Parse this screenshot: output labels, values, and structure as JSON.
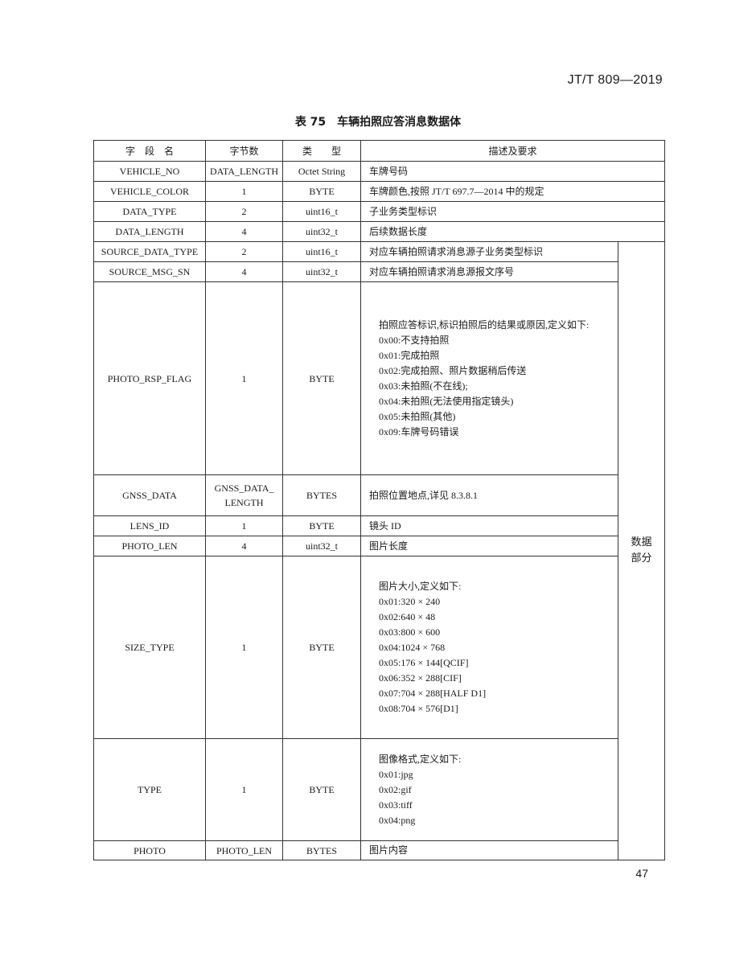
{
  "header": {
    "standard": "JT/T 809—2019"
  },
  "table_title": "表 75　车辆拍照应答消息数据体",
  "columns": [
    "字　段　名",
    "字节数",
    "类　　型",
    "描述及要求"
  ],
  "side_label": "数据\n部分",
  "rows": [
    {
      "name": "VEHICLE_NO",
      "bytes": "DATA_LENGTH",
      "type": "Octet String",
      "desc": [
        "车牌号码"
      ]
    },
    {
      "name": "VEHICLE_COLOR",
      "bytes": "1",
      "type": "BYTE",
      "desc": [
        "车牌颜色,按照 JT/T 697.7—2014 中的规定"
      ]
    },
    {
      "name": "DATA_TYPE",
      "bytes": "2",
      "type": "uint16_t",
      "desc": [
        "子业务类型标识"
      ]
    },
    {
      "name": "DATA_LENGTH",
      "bytes": "4",
      "type": "uint32_t",
      "desc": [
        "后续数据长度"
      ]
    },
    {
      "name": "SOURCE_DATA_TYPE",
      "bytes": "2",
      "type": "uint16_t",
      "desc": [
        "对应车辆拍照请求消息源子业务类型标识"
      ]
    },
    {
      "name": "SOURCE_MSG_SN",
      "bytes": "4",
      "type": "uint32_t",
      "desc": [
        "对应车辆拍照请求消息源报文序号"
      ]
    },
    {
      "name": "PHOTO_RSP_FLAG",
      "bytes": "1",
      "type": "BYTE",
      "desc": [
        "拍照应答标识,标识拍照后的结果或原因,定义如下:",
        "0x00:不支持拍照",
        "0x01:完成拍照",
        "0x02:完成拍照、照片数据稍后传送",
        "0x03:未拍照(不在线);",
        "0x04:未拍照(无法使用指定镜头)",
        "0x05:未拍照(其他)",
        "0x09:车牌号码错误"
      ]
    },
    {
      "name": "GNSS_DATA",
      "bytes": "GNSS_DATA_\nLENGTH",
      "type": "BYTES",
      "desc": [
        "拍照位置地点,详见 8.3.8.1"
      ]
    },
    {
      "name": "LENS_ID",
      "bytes": "1",
      "type": "BYTE",
      "desc": [
        "镜头 ID"
      ]
    },
    {
      "name": "PHOTO_LEN",
      "bytes": "4",
      "type": "uint32_t",
      "desc": [
        "图片长度"
      ]
    },
    {
      "name": "SIZE_TYPE",
      "bytes": "1",
      "type": "BYTE",
      "desc": [
        "图片大小,定义如下:",
        "0x01:320 × 240",
        "0x02:640 × 48",
        "0x03:800 × 600",
        "0x04:1024 × 768",
        "0x05:176 × 144[QCIF]",
        "0x06:352 × 288[CIF]",
        "0x07:704 × 288[HALF D1]",
        "0x08:704 × 576[D1]"
      ]
    },
    {
      "name": "TYPE",
      "bytes": "1",
      "type": "BYTE",
      "desc": [
        "图像格式,定义如下:",
        "0x01:jpg",
        "0x02:gif",
        "0x03:tiff",
        "0x04:png"
      ]
    },
    {
      "name": "PHOTO",
      "bytes": "PHOTO_LEN",
      "type": "BYTES",
      "desc": [
        "图片内容"
      ]
    }
  ],
  "page_number": "47"
}
